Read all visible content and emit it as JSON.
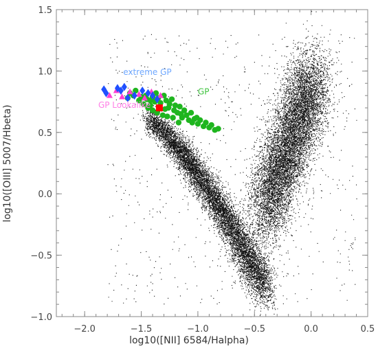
{
  "chart_data": {
    "type": "scatter",
    "xlabel": "log10([NII] 6584/Halpha)",
    "ylabel": "log10([OIII] 5007/Hbeta)",
    "xlim": [
      -2.25,
      0.5
    ],
    "ylim": [
      -1.0,
      1.5
    ],
    "x_ticks": [
      {
        "value": -2.0,
        "label": "−2.0"
      },
      {
        "value": -1.5,
        "label": "−1.5"
      },
      {
        "value": -1.0,
        "label": "−1.0"
      },
      {
        "value": -0.5,
        "label": "−0.5"
      },
      {
        "value": 0.0,
        "label": "0.0"
      },
      {
        "value": 0.5,
        "label": "0.5"
      }
    ],
    "y_ticks": [
      {
        "value": -1.0,
        "label": "−1.0"
      },
      {
        "value": -0.5,
        "label": "−0.5"
      },
      {
        "value": 0.0,
        "label": "0.0"
      },
      {
        "value": 0.5,
        "label": "0.5"
      },
      {
        "value": 1.0,
        "label": "1.0"
      },
      {
        "value": 1.5,
        "label": "1.5"
      }
    ],
    "grid": false,
    "background_population": {
      "description_color": "#000000",
      "branches": [
        {
          "x_range": [
            -1.5,
            -0.35
          ],
          "y_range": [
            0.6,
            -0.85
          ],
          "count": 9000,
          "style": "star-forming sequence"
        },
        {
          "x_range": [
            -0.5,
            0.15
          ],
          "y_range": [
            -0.2,
            1.0
          ],
          "count": 9000,
          "style": "AGN branch"
        }
      ]
    },
    "series": [
      {
        "name": "GP",
        "marker": "circle",
        "color": "#1fb51f",
        "points": [
          [
            -1.6,
            0.82
          ],
          [
            -1.55,
            0.84
          ],
          [
            -1.5,
            0.79
          ],
          [
            -1.46,
            0.8
          ],
          [
            -1.45,
            0.77
          ],
          [
            -1.42,
            0.76
          ],
          [
            -1.4,
            0.79
          ],
          [
            -1.38,
            0.75
          ],
          [
            -1.37,
            0.82
          ],
          [
            -1.35,
            0.78
          ],
          [
            -1.33,
            0.74
          ],
          [
            -1.3,
            0.8
          ],
          [
            -1.28,
            0.76
          ],
          [
            -1.26,
            0.7
          ],
          [
            -1.25,
            0.73
          ],
          [
            -1.23,
            0.77
          ],
          [
            -1.21,
            0.68
          ],
          [
            -1.2,
            0.72
          ],
          [
            -1.18,
            0.66
          ],
          [
            -1.16,
            0.71
          ],
          [
            -1.14,
            0.62
          ],
          [
            -1.12,
            0.68
          ],
          [
            -1.1,
            0.64
          ],
          [
            -1.08,
            0.6
          ],
          [
            -1.06,
            0.66
          ],
          [
            -1.05,
            0.58
          ],
          [
            -1.03,
            0.61
          ],
          [
            -1.0,
            0.57
          ],
          [
            -0.98,
            0.6
          ],
          [
            -0.95,
            0.55
          ],
          [
            -0.93,
            0.58
          ],
          [
            -0.9,
            0.54
          ],
          [
            -0.88,
            0.56
          ],
          [
            -0.85,
            0.52
          ],
          [
            -0.82,
            0.53
          ],
          [
            -1.48,
            0.73
          ],
          [
            -1.44,
            0.7
          ],
          [
            -1.4,
            0.68
          ],
          [
            -1.36,
            0.66
          ],
          [
            -1.31,
            0.64
          ],
          [
            -1.27,
            0.63
          ],
          [
            -1.22,
            0.62
          ],
          [
            -1.17,
            0.58
          ],
          [
            -1.52,
            0.76
          ],
          [
            -1.57,
            0.8
          ],
          [
            -1.62,
            0.78
          ],
          [
            -1.42,
            0.72
          ],
          [
            -1.29,
            0.69
          ],
          [
            -1.15,
            0.65
          ],
          [
            -1.01,
            0.62
          ]
        ]
      },
      {
        "name": "extreme GP",
        "marker": "diamond",
        "color": "#1f4fff",
        "points": [
          [
            -1.83,
            0.85
          ],
          [
            -1.81,
            0.82
          ],
          [
            -1.71,
            0.86
          ],
          [
            -1.68,
            0.84
          ],
          [
            -1.65,
            0.87
          ],
          [
            -1.62,
            0.78
          ],
          [
            -1.56,
            0.8
          ],
          [
            -1.49,
            0.84
          ],
          [
            -1.44,
            0.82
          ],
          [
            -1.4,
            0.8
          ],
          [
            -1.36,
            0.77
          ]
        ]
      },
      {
        "name": "GP Lookalike",
        "marker": "triangle",
        "color": "#ff3fd2",
        "points": [
          [
            -1.78,
            0.8
          ],
          [
            -1.72,
            0.84
          ],
          [
            -1.67,
            0.79
          ],
          [
            -1.6,
            0.83
          ],
          [
            -1.52,
            0.81
          ],
          [
            -1.47,
            0.78
          ],
          [
            -1.41,
            0.83
          ],
          [
            -1.33,
            0.8
          ]
        ]
      },
      {
        "name": "",
        "marker": "square",
        "color": "#ff0000",
        "points": [
          [
            -1.34,
            0.7
          ]
        ]
      }
    ],
    "annotations": [
      {
        "text": "extreme GP",
        "x": -1.66,
        "y": 0.97,
        "color": "#6fa8ff"
      },
      {
        "text": "GP",
        "x": -1.0,
        "y": 0.81,
        "color": "#3fc43f"
      },
      {
        "text": "GP Lookalike",
        "x": -1.88,
        "y": 0.7,
        "color": "#ff7fe6"
      }
    ]
  }
}
